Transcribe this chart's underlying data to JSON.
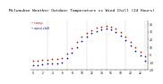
{
  "title": "Milwaukee Weather Outdoor Temperature vs Wind Chill (24 Hours)",
  "title_fontsize": 3.2,
  "x_hours": [
    0,
    1,
    2,
    3,
    4,
    5,
    6,
    7,
    8,
    9,
    10,
    11,
    12,
    13,
    14,
    15,
    16,
    17,
    18,
    19,
    20,
    21,
    22,
    23
  ],
  "temp": [
    -8,
    -8,
    -7,
    -7,
    -6,
    -6,
    -5,
    1,
    8,
    16,
    23,
    28,
    32,
    35,
    37,
    38,
    37,
    34,
    30,
    24,
    17,
    10,
    4,
    -2
  ],
  "windchill": [
    -14,
    -14,
    -13,
    -12,
    -11,
    -11,
    -10,
    -5,
    2,
    10,
    18,
    24,
    28,
    31,
    33,
    34,
    33,
    30,
    25,
    19,
    12,
    5,
    -1,
    -8
  ],
  "temp_color": "#cc0000",
  "windchill_color": "#0000bb",
  "bg_color": "#ffffff",
  "ylim": [
    -20,
    45
  ],
  "ytick_vals": [
    -20,
    -10,
    0,
    10,
    20,
    30,
    40
  ],
  "ytick_labels": [
    "-20",
    "-10",
    "0",
    "10",
    "20",
    "30",
    "40"
  ],
  "xtick_vals": [
    0,
    1,
    2,
    3,
    4,
    5,
    6,
    7,
    8,
    9,
    10,
    11,
    12,
    13,
    14,
    15,
    16,
    17,
    18,
    19,
    20,
    21,
    22,
    23
  ],
  "xtick_labels": [
    "0",
    "",
    "2",
    "",
    "4",
    "",
    "6",
    "",
    "8",
    "",
    "10",
    "",
    "12",
    "",
    "14",
    "",
    "16",
    "",
    "18",
    "",
    "20",
    "",
    "22",
    ""
  ],
  "grid_x": [
    3,
    7,
    11,
    15,
    19,
    23
  ],
  "marker_size": 1.5,
  "tick_fontsize": 2.2,
  "legend_fontsize": 2.5
}
